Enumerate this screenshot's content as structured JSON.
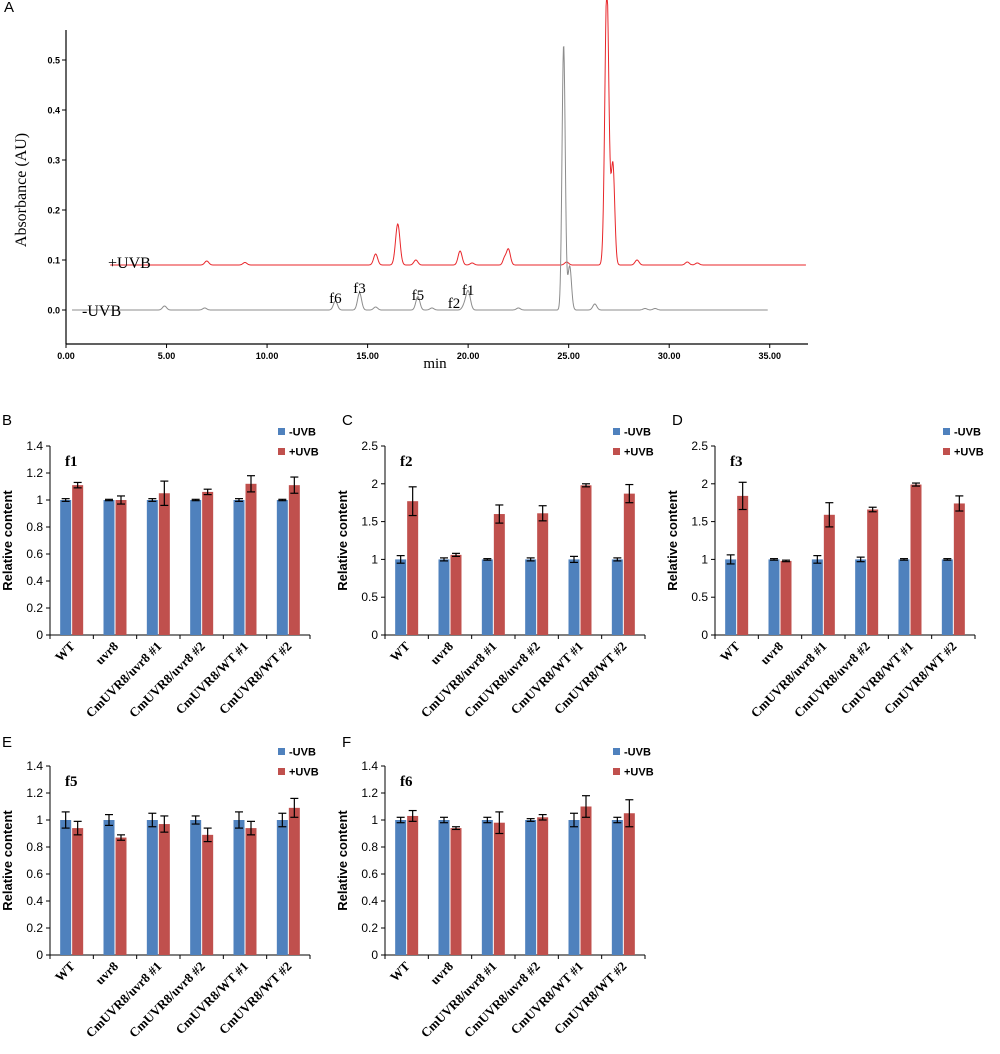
{
  "colors": {
    "minus_uvb": "#4F81BD",
    "plus_uvb": "#C0504D",
    "trace_plus": "#E8262A",
    "trace_minus": "#8C8C8C",
    "axis": "#000000"
  },
  "chart_data": [
    {
      "panel": "A",
      "type": "line",
      "xlabel": "min",
      "ylabel": "Absorbance (AU)",
      "xlim": [
        0,
        37.5
      ],
      "ylim": [
        -0.02,
        0.56
      ],
      "x_ticks": [
        "0.00",
        "5.00",
        "10.00",
        "15.00",
        "20.00",
        "25.00",
        "30.00",
        "35.00"
      ],
      "y_ticks": [
        "0.0",
        "0.1",
        "0.2",
        "0.3",
        "0.4",
        "0.5"
      ],
      "series": [
        {
          "name": "+UVB",
          "label": "+UVB",
          "baseline": 0.09,
          "x_start": 2.2,
          "x_end": 36.8,
          "peaks": [
            {
              "x": 7.0,
              "h": 0.008,
              "w": 0.1
            },
            {
              "x": 8.9,
              "h": 0.005,
              "w": 0.1
            },
            {
              "x": 15.4,
              "h": 0.022,
              "w": 0.1
            },
            {
              "x": 16.5,
              "h": 0.082,
              "w": 0.11
            },
            {
              "x": 17.4,
              "h": 0.01,
              "w": 0.1
            },
            {
              "x": 19.6,
              "h": 0.028,
              "w": 0.1
            },
            {
              "x": 20.2,
              "h": 0.004,
              "w": 0.1
            },
            {
              "x": 21.8,
              "h": 0.012,
              "w": 0.08
            },
            {
              "x": 22.0,
              "h": 0.032,
              "w": 0.1
            },
            {
              "x": 24.9,
              "h": 0.006,
              "w": 0.1
            },
            {
              "x": 26.9,
              "h": 0.56,
              "w": 0.1
            },
            {
              "x": 27.2,
              "h": 0.2,
              "w": 0.09
            },
            {
              "x": 28.4,
              "h": 0.01,
              "w": 0.1
            },
            {
              "x": 30.9,
              "h": 0.006,
              "w": 0.1
            },
            {
              "x": 31.4,
              "h": 0.004,
              "w": 0.1
            }
          ]
        },
        {
          "name": "-UVB",
          "label": "-UVB",
          "baseline": 0.0,
          "x_start": 0.3,
          "x_end": 34.9,
          "peaks": [
            {
              "x": 4.9,
              "h": 0.008,
              "w": 0.1
            },
            {
              "x": 6.9,
              "h": 0.004,
              "w": 0.1
            },
            {
              "x": 13.4,
              "h": 0.018,
              "w": 0.1
            },
            {
              "x": 14.6,
              "h": 0.034,
              "w": 0.1
            },
            {
              "x": 15.4,
              "h": 0.006,
              "w": 0.1
            },
            {
              "x": 17.5,
              "h": 0.027,
              "w": 0.1
            },
            {
              "x": 18.2,
              "h": 0.004,
              "w": 0.1
            },
            {
              "x": 19.8,
              "h": 0.008,
              "w": 0.1
            },
            {
              "x": 20.0,
              "h": 0.038,
              "w": 0.11
            },
            {
              "x": 22.5,
              "h": 0.004,
              "w": 0.1
            },
            {
              "x": 24.75,
              "h": 0.53,
              "w": 0.08
            },
            {
              "x": 25.05,
              "h": 0.088,
              "w": 0.09
            },
            {
              "x": 26.3,
              "h": 0.012,
              "w": 0.1
            },
            {
              "x": 28.8,
              "h": 0.003,
              "w": 0.1
            },
            {
              "x": 29.3,
              "h": 0.003,
              "w": 0.1
            }
          ]
        }
      ],
      "annotations": [
        {
          "text": "f6",
          "x": 13.4
        },
        {
          "text": "f3",
          "x": 14.6
        },
        {
          "text": "f5",
          "x": 17.5
        },
        {
          "text": "f2",
          "x": 19.3
        },
        {
          "text": "f1",
          "x": 20.0
        }
      ]
    },
    {
      "panel": "B",
      "type": "bar",
      "title": "f1",
      "ylabel": "Relative content",
      "ylim": [
        0,
        1.4
      ],
      "y_ticks": [
        "0",
        "0.2",
        "0.4",
        "0.6",
        "0.8",
        "1",
        "1.2",
        "1.4"
      ],
      "categories": [
        "WT",
        "uvr8",
        "CmUVR8/uvr8 #1",
        "CmUVR8/uvr8 #2",
        "CmUVR8/WT #1",
        "CmUVR8/WT #2"
      ],
      "series": [
        {
          "name": "-UVB",
          "values": [
            1.0,
            1.0,
            1.0,
            1.0,
            1.0,
            1.0
          ],
          "errors": [
            0.01,
            0.005,
            0.01,
            0.005,
            0.01,
            0.005
          ]
        },
        {
          "name": "+UVB",
          "values": [
            1.11,
            1.0,
            1.05,
            1.06,
            1.12,
            1.11
          ],
          "errors": [
            0.02,
            0.03,
            0.09,
            0.02,
            0.06,
            0.06
          ]
        }
      ]
    },
    {
      "panel": "C",
      "type": "bar",
      "title": "f2",
      "ylabel": "Relative content",
      "ylim": [
        0,
        2.5
      ],
      "y_ticks": [
        "0",
        "0.5",
        "1",
        "1.5",
        "2",
        "2.5"
      ],
      "categories": [
        "WT",
        "uvr8",
        "CmUVR8/uvr8 #1",
        "CmUVR8/uvr8 #2",
        "CmUVR8/WT #1",
        "CmUVR8/WT #2"
      ],
      "series": [
        {
          "name": "-UVB",
          "values": [
            1.0,
            1.0,
            1.0,
            1.0,
            1.0,
            1.0
          ],
          "errors": [
            0.05,
            0.02,
            0.01,
            0.02,
            0.04,
            0.02
          ]
        },
        {
          "name": "+UVB",
          "values": [
            1.77,
            1.06,
            1.6,
            1.61,
            1.98,
            1.87
          ],
          "errors": [
            0.19,
            0.02,
            0.12,
            0.1,
            0.02,
            0.12
          ]
        }
      ]
    },
    {
      "panel": "D",
      "type": "bar",
      "title": "f3",
      "ylabel": "Relative content",
      "ylim": [
        0,
        2.5
      ],
      "y_ticks": [
        "0",
        "0.5",
        "1",
        "1.5",
        "2",
        "2.5"
      ],
      "categories": [
        "WT",
        "uvr8",
        "CmUVR8/uvr8 #1",
        "CmUVR8/uvr8 #2",
        "CmUVR8/WT #1",
        "CmUVR8/WT #2"
      ],
      "series": [
        {
          "name": "-UVB",
          "values": [
            1.0,
            1.0,
            1.0,
            1.0,
            1.0,
            1.0
          ],
          "errors": [
            0.06,
            0.01,
            0.05,
            0.03,
            0.01,
            0.01
          ]
        },
        {
          "name": "+UVB",
          "values": [
            1.84,
            0.98,
            1.59,
            1.66,
            1.99,
            1.74
          ],
          "errors": [
            0.18,
            0.01,
            0.16,
            0.03,
            0.02,
            0.1
          ]
        }
      ]
    },
    {
      "panel": "E",
      "type": "bar",
      "title": "f5",
      "ylabel": "Relative content",
      "ylim": [
        0,
        1.4
      ],
      "y_ticks": [
        "0",
        "0.2",
        "0.4",
        "0.6",
        "0.8",
        "1",
        "1.2",
        "1.4"
      ],
      "categories": [
        "WT",
        "uvr8",
        "CmUVR8/uvr8 #1",
        "CmUVR8/uvr8 #2",
        "CmUVR8/WT #1",
        "CmUVR8/WT #2"
      ],
      "series": [
        {
          "name": "-UVB",
          "values": [
            1.0,
            1.0,
            1.0,
            1.0,
            1.0,
            1.0
          ],
          "errors": [
            0.06,
            0.04,
            0.05,
            0.03,
            0.06,
            0.05
          ]
        },
        {
          "name": "+UVB",
          "values": [
            0.94,
            0.87,
            0.97,
            0.89,
            0.94,
            1.09
          ],
          "errors": [
            0.05,
            0.02,
            0.06,
            0.05,
            0.05,
            0.07
          ]
        }
      ]
    },
    {
      "panel": "F",
      "type": "bar",
      "title": "f6",
      "ylabel": "Relative content",
      "ylim": [
        0,
        1.4
      ],
      "y_ticks": [
        "0",
        "0.2",
        "0.4",
        "0.6",
        "0.8",
        "1",
        "1.2",
        "1.4"
      ],
      "categories": [
        "WT",
        "uvr8",
        "CmUVR8/uvr8 #1",
        "CmUVR8/uvr8 #2",
        "CmUVR8/WT #1",
        "CmUVR8/WT #2"
      ],
      "series": [
        {
          "name": "-UVB",
          "values": [
            1.0,
            1.0,
            1.0,
            1.0,
            1.0,
            1.0
          ],
          "errors": [
            0.02,
            0.02,
            0.02,
            0.01,
            0.05,
            0.02
          ]
        },
        {
          "name": "+UVB",
          "values": [
            1.03,
            0.94,
            0.98,
            1.02,
            1.1,
            1.05
          ],
          "errors": [
            0.04,
            0.01,
            0.08,
            0.02,
            0.08,
            0.1
          ]
        }
      ]
    }
  ]
}
